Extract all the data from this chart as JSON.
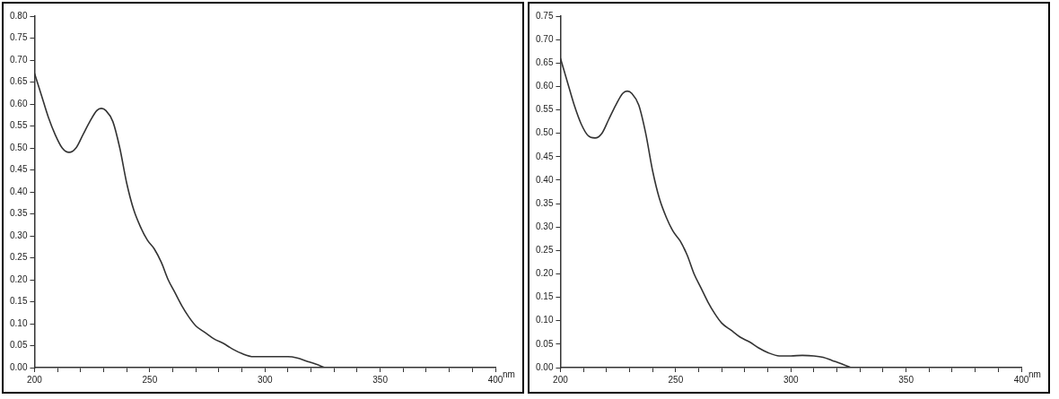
{
  "chart_data": [
    {
      "type": "line",
      "xlabel": "nm",
      "xlim": [
        200,
        400
      ],
      "ylim": [
        0,
        0.8
      ],
      "xticks": [
        200,
        {
          "value": 210,
          "label": null
        },
        {
          "value": 220,
          "label": null
        },
        {
          "value": 230,
          "label": null
        },
        {
          "value": 240,
          "label": null
        },
        250,
        {
          "value": 260,
          "label": null
        },
        {
          "value": 270,
          "label": null
        },
        {
          "value": 280,
          "label": null
        },
        {
          "value": 290,
          "label": null
        },
        300,
        {
          "value": 310,
          "label": null
        },
        {
          "value": 320,
          "label": null
        },
        {
          "value": 330,
          "label": null
        },
        {
          "value": 340,
          "label": null
        },
        350,
        {
          "value": 360,
          "label": null
        },
        {
          "value": 370,
          "label": null
        },
        {
          "value": 380,
          "label": null
        },
        {
          "value": 390,
          "label": null
        },
        400
      ],
      "yticks": [
        {
          "value": 0,
          "label": "0.00"
        },
        0.05,
        {
          "value": 0.1,
          "label": "0.10"
        },
        0.15,
        {
          "value": 0.2,
          "label": "0.20"
        },
        0.25,
        {
          "value": 0.3,
          "label": "0.30"
        },
        0.35,
        {
          "value": 0.4,
          "label": "0.40"
        },
        0.45,
        {
          "value": 0.5,
          "label": "0.50"
        },
        0.55,
        {
          "value": 0.6,
          "label": "0.60"
        },
        0.65,
        {
          "value": 0.7,
          "label": "0.70"
        },
        0.75,
        {
          "value": 0.8,
          "label": "0.80"
        }
      ],
      "grid": false,
      "legend": false,
      "marker": "none",
      "line_style": "solid",
      "series": [
        {
          "color": "#333333",
          "x": [
            200,
            203,
            206,
            209,
            212,
            215,
            218,
            221,
            224,
            227,
            229,
            231,
            234,
            237,
            240,
            243,
            246,
            249,
            252,
            255,
            258,
            261,
            264,
            267,
            270,
            274,
            278,
            282,
            286,
            290,
            295,
            300,
            305,
            310,
            314,
            318,
            322,
            326
          ],
          "values": [
            0.67,
            0.62,
            0.57,
            0.53,
            0.5,
            0.49,
            0.5,
            0.53,
            0.56,
            0.585,
            0.59,
            0.585,
            0.56,
            0.5,
            0.42,
            0.36,
            0.32,
            0.29,
            0.27,
            0.24,
            0.2,
            0.17,
            0.14,
            0.115,
            0.095,
            0.08,
            0.065,
            0.055,
            0.042,
            0.032,
            0.025,
            0.025,
            0.025,
            0.025,
            0.022,
            0.015,
            0.008,
            0
          ]
        }
      ]
    },
    {
      "type": "line",
      "xlabel": "nm",
      "xlim": [
        200,
        400
      ],
      "ylim": [
        0,
        0.75
      ],
      "xticks": [
        200,
        {
          "value": 210,
          "label": null
        },
        {
          "value": 220,
          "label": null
        },
        {
          "value": 230,
          "label": null
        },
        {
          "value": 240,
          "label": null
        },
        250,
        {
          "value": 260,
          "label": null
        },
        {
          "value": 270,
          "label": null
        },
        {
          "value": 280,
          "label": null
        },
        {
          "value": 290,
          "label": null
        },
        300,
        {
          "value": 310,
          "label": null
        },
        {
          "value": 320,
          "label": null
        },
        {
          "value": 330,
          "label": null
        },
        {
          "value": 340,
          "label": null
        },
        350,
        {
          "value": 360,
          "label": null
        },
        {
          "value": 370,
          "label": null
        },
        {
          "value": 380,
          "label": null
        },
        {
          "value": 390,
          "label": null
        },
        400
      ],
      "yticks": [
        {
          "value": 0,
          "label": "0.00"
        },
        0.05,
        {
          "value": 0.1,
          "label": "0.10"
        },
        0.15,
        {
          "value": 0.2,
          "label": "0.20"
        },
        0.25,
        {
          "value": 0.3,
          "label": "0.30"
        },
        0.35,
        {
          "value": 0.4,
          "label": "0.40"
        },
        0.45,
        {
          "value": 0.5,
          "label": "0.50"
        },
        0.55,
        {
          "value": 0.6,
          "label": "0.60"
        },
        0.65,
        {
          "value": 0.7,
          "label": "0.70"
        },
        0.75
      ],
      "grid": false,
      "legend": false,
      "marker": "none",
      "line_style": "solid",
      "series": [
        {
          "color": "#333333",
          "x": [
            200,
            203,
            206,
            209,
            212,
            215,
            218,
            221,
            224,
            227,
            229,
            231,
            234,
            237,
            240,
            243,
            246,
            249,
            252,
            255,
            258,
            261,
            264,
            267,
            270,
            274,
            278,
            282,
            286,
            290,
            295,
            300,
            305,
            310,
            314,
            318,
            322,
            326
          ],
          "values": [
            0.66,
            0.61,
            0.56,
            0.52,
            0.495,
            0.49,
            0.5,
            0.53,
            0.56,
            0.585,
            0.59,
            0.585,
            0.56,
            0.5,
            0.42,
            0.36,
            0.32,
            0.29,
            0.27,
            0.24,
            0.2,
            0.17,
            0.14,
            0.115,
            0.095,
            0.08,
            0.065,
            0.055,
            0.042,
            0.032,
            0.025,
            0.025,
            0.026,
            0.025,
            0.022,
            0.015,
            0.008,
            0
          ]
        }
      ]
    }
  ]
}
